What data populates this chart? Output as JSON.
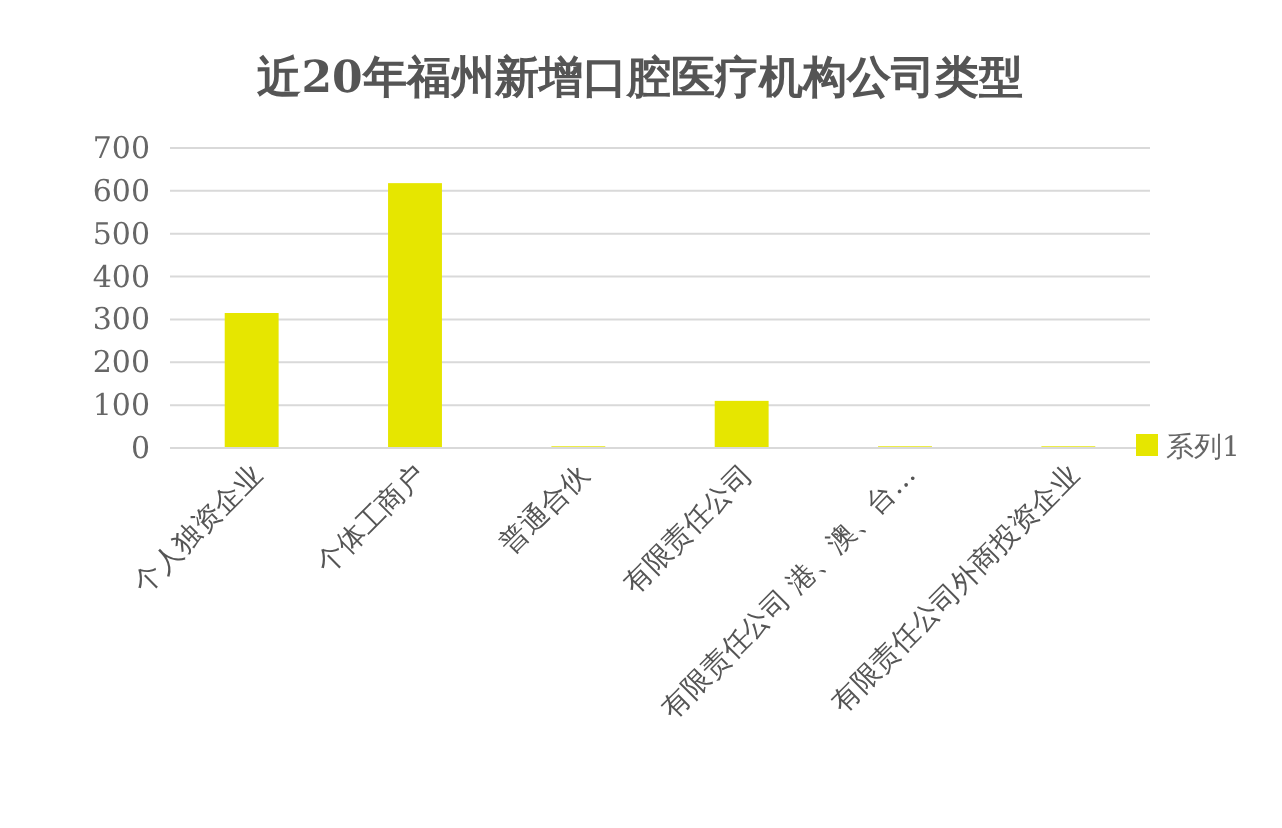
{
  "chart_data": {
    "type": "bar",
    "title": "近20年福州新增口腔医疗机构公司类型",
    "categories": [
      "个人独资企业",
      "个体工商户",
      "普通合伙",
      "有限责任公司",
      "有限责任公司 港、澳、台…",
      "有限责任公司外商投资企业"
    ],
    "series": [
      {
        "name": "系列1",
        "color": "#e6e600",
        "values": [
          315,
          618,
          4,
          110,
          4,
          4
        ]
      }
    ],
    "ylim": [
      0,
      700
    ],
    "yticks": [
      0,
      100,
      200,
      300,
      400,
      500,
      600,
      700
    ],
    "grid": "y",
    "legend": "right"
  }
}
